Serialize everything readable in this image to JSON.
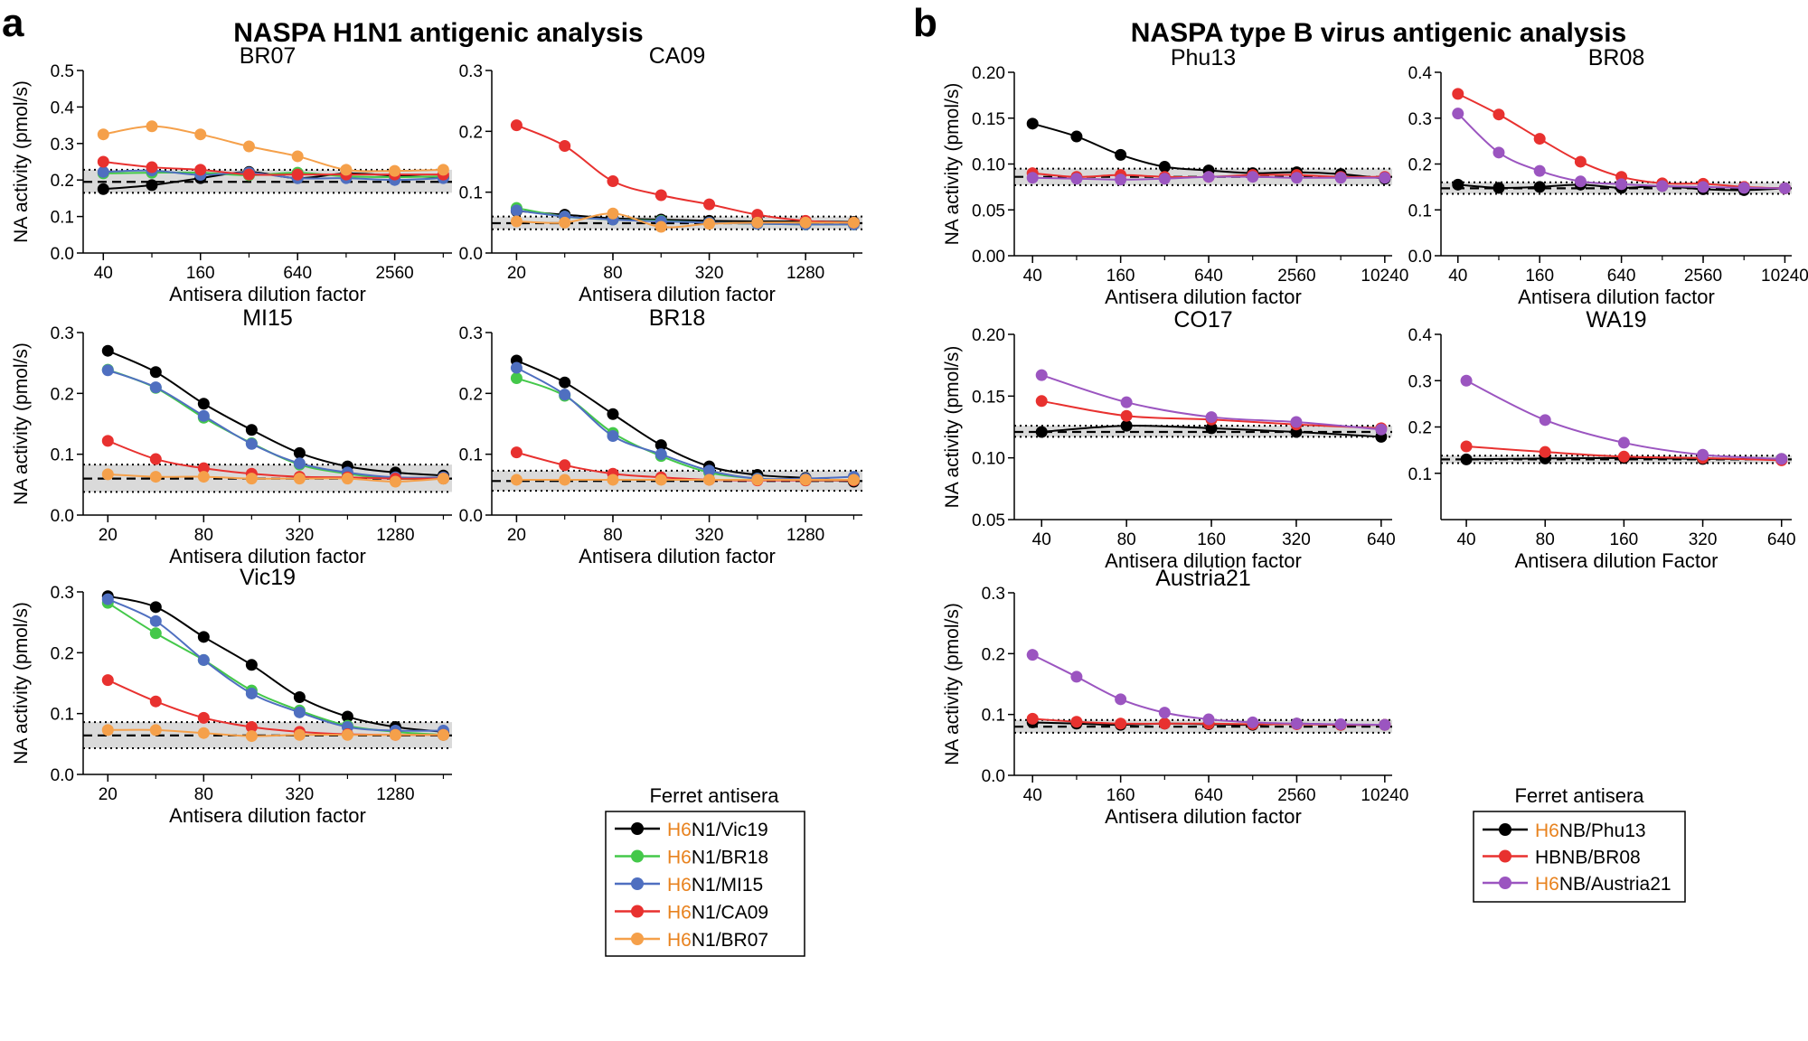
{
  "panel_a": {
    "letter": "a",
    "title": "NASPA H1N1 antigenic analysis",
    "legend": {
      "title": "Ferret antisera",
      "entries": [
        {
          "prefix": "H6",
          "rest": "N1/Vic19",
          "color": "#000000"
        },
        {
          "prefix": "H6",
          "rest": "N1/BR18",
          "color": "#44c84a"
        },
        {
          "prefix": "H6",
          "rest": "N1/MI15",
          "color": "#4f6fc0"
        },
        {
          "prefix": "H6",
          "rest": "N1/CA09",
          "color": "#e8312f"
        },
        {
          "prefix": "H6",
          "rest": "N1/BR07",
          "color": "#f5a04a"
        }
      ]
    }
  },
  "panel_b": {
    "letter": "b",
    "title": "NASPA type B virus antigenic analysis",
    "legend": {
      "title": "Ferret antisera",
      "entries": [
        {
          "prefix": "H6",
          "rest": "NB/Phu13",
          "color": "#000000"
        },
        {
          "prefix": "",
          "rest": "HBNB/BR08",
          "color": "#e8312f"
        },
        {
          "prefix": "H6",
          "rest": "NB/Austria21",
          "color": "#9b55c0"
        }
      ]
    }
  },
  "colors": {
    "prefix_orange": "#e8821e",
    "band_gray": "#d4d4d4"
  },
  "chart_data": [
    {
      "type": "line",
      "name": "BR07",
      "title": "BR07",
      "xlabel": "Antisera dilution factor",
      "ylabel": "NA activity (pmol/s)",
      "x": [
        40,
        80,
        160,
        320,
        640,
        1280,
        2560,
        5120
      ],
      "xticks": [
        40,
        160,
        640,
        2560
      ],
      "xlim": [
        30,
        5800
      ],
      "ylim": [
        0,
        0.5
      ],
      "yticks": [
        0.0,
        0.1,
        0.2,
        0.3,
        0.4,
        0.5
      ],
      "ytick_labels": [
        "0.0",
        "0.1",
        "0.2",
        "0.3",
        "0.4",
        "0.5"
      ],
      "baseline": {
        "mean": 0.195,
        "low": 0.165,
        "high": 0.228
      },
      "series": [
        {
          "name": "H6N1/Vic19",
          "color": "#000000",
          "values": [
            0.175,
            0.186,
            0.205,
            0.222,
            0.205,
            0.218,
            0.212,
            0.207
          ]
        },
        {
          "name": "H6N1/BR18",
          "color": "#44c84a",
          "values": [
            0.218,
            0.22,
            0.22,
            0.213,
            0.22,
            0.21,
            0.208,
            0.21
          ]
        },
        {
          "name": "H6N1/MI15",
          "color": "#4f6fc0",
          "values": [
            0.222,
            0.226,
            0.214,
            0.22,
            0.205,
            0.205,
            0.2,
            0.205
          ]
        },
        {
          "name": "H6N1/CA09",
          "color": "#e8312f",
          "values": [
            0.25,
            0.235,
            0.228,
            0.215,
            0.215,
            0.215,
            0.215,
            0.215
          ]
        },
        {
          "name": "H6N1/BR07",
          "color": "#f5a04a",
          "values": [
            0.325,
            0.347,
            0.325,
            0.292,
            0.265,
            0.228,
            0.225,
            0.228
          ]
        }
      ]
    },
    {
      "type": "line",
      "name": "CA09",
      "title": "CA09",
      "xlabel": "Antisera dilution factor",
      "ylabel": "",
      "x": [
        20,
        40,
        80,
        160,
        320,
        640,
        1280,
        2560
      ],
      "xticks": [
        20,
        80,
        320,
        1280
      ],
      "xlim": [
        14,
        2900
      ],
      "ylim": [
        0,
        0.3
      ],
      "yticks": [
        0.0,
        0.1,
        0.2,
        0.3
      ],
      "ytick_labels": [
        "0.0",
        "0.1",
        "0.2",
        "0.3"
      ],
      "baseline": {
        "mean": 0.049,
        "low": 0.039,
        "high": 0.06
      },
      "series": [
        {
          "name": "H6N1/Vic19",
          "color": "#000000",
          "values": [
            0.069,
            0.063,
            0.057,
            0.055,
            0.053,
            0.052,
            0.052,
            0.051
          ]
        },
        {
          "name": "H6N1/BR18",
          "color": "#44c84a",
          "values": [
            0.074,
            0.06,
            0.055,
            0.053,
            0.05,
            0.048,
            0.047,
            0.047
          ]
        },
        {
          "name": "H6N1/MI15",
          "color": "#4f6fc0",
          "values": [
            0.07,
            0.06,
            0.055,
            0.052,
            0.05,
            0.048,
            0.047,
            0.047
          ]
        },
        {
          "name": "H6N1/CA09",
          "color": "#e8312f",
          "values": [
            0.21,
            0.176,
            0.118,
            0.095,
            0.08,
            0.063,
            0.053,
            0.05
          ]
        },
        {
          "name": "H6N1/BR07",
          "color": "#f5a04a",
          "values": [
            0.052,
            0.05,
            0.065,
            0.043,
            0.048,
            0.05,
            0.05,
            0.05
          ]
        }
      ]
    },
    {
      "type": "line",
      "name": "MI15",
      "title": "MI15",
      "xlabel": "Antisera dilution factor",
      "ylabel": "NA activity (pmol/s)",
      "x": [
        20,
        40,
        80,
        160,
        320,
        640,
        1280,
        2560
      ],
      "xticks": [
        20,
        80,
        320,
        1280
      ],
      "xlim": [
        14,
        2900
      ],
      "ylim": [
        0,
        0.3
      ],
      "yticks": [
        0.0,
        0.1,
        0.2,
        0.3
      ],
      "ytick_labels": [
        "0.0",
        "0.1",
        "0.2",
        "0.3"
      ],
      "baseline": {
        "mean": 0.06,
        "low": 0.038,
        "high": 0.083
      },
      "series": [
        {
          "name": "H6N1/Vic19",
          "color": "#000000",
          "values": [
            0.27,
            0.235,
            0.183,
            0.14,
            0.102,
            0.08,
            0.07,
            0.065
          ]
        },
        {
          "name": "H6N1/BR18",
          "color": "#44c84a",
          "values": [
            0.239,
            0.209,
            0.16,
            0.118,
            0.083,
            0.068,
            0.06,
            0.06
          ]
        },
        {
          "name": "H6N1/MI15",
          "color": "#4f6fc0",
          "values": [
            0.238,
            0.21,
            0.163,
            0.117,
            0.085,
            0.07,
            0.062,
            0.062
          ]
        },
        {
          "name": "H6N1/CA09",
          "color": "#e8312f",
          "values": [
            0.122,
            0.092,
            0.077,
            0.068,
            0.063,
            0.062,
            0.06,
            0.06
          ]
        },
        {
          "name": "H6N1/BR07",
          "color": "#f5a04a",
          "values": [
            0.067,
            0.063,
            0.063,
            0.06,
            0.06,
            0.06,
            0.055,
            0.06
          ]
        }
      ]
    },
    {
      "type": "line",
      "name": "BR18",
      "title": "BR18",
      "xlabel": "Antisera dilution factor",
      "ylabel": "",
      "x": [
        20,
        40,
        80,
        160,
        320,
        640,
        1280,
        2560
      ],
      "xticks": [
        20,
        80,
        320,
        1280
      ],
      "xlim": [
        14,
        2900
      ],
      "ylim": [
        0,
        0.3
      ],
      "yticks": [
        0.0,
        0.1,
        0.2,
        0.3
      ],
      "ytick_labels": [
        "0.0",
        "0.1",
        "0.2",
        "0.3"
      ],
      "baseline": {
        "mean": 0.056,
        "low": 0.04,
        "high": 0.073
      },
      "series": [
        {
          "name": "H6N1/Vic19",
          "color": "#000000",
          "values": [
            0.254,
            0.218,
            0.166,
            0.115,
            0.08,
            0.066,
            0.061,
            0.055
          ]
        },
        {
          "name": "H6N1/BR18",
          "color": "#44c84a",
          "values": [
            0.225,
            0.196,
            0.135,
            0.097,
            0.07,
            0.06,
            0.057,
            0.057
          ]
        },
        {
          "name": "H6N1/MI15",
          "color": "#4f6fc0",
          "values": [
            0.242,
            0.198,
            0.13,
            0.1,
            0.073,
            0.06,
            0.06,
            0.063
          ]
        },
        {
          "name": "H6N1/CA09",
          "color": "#e8312f",
          "values": [
            0.103,
            0.082,
            0.068,
            0.062,
            0.058,
            0.057,
            0.057,
            0.057
          ]
        },
        {
          "name": "H6N1/BR07",
          "color": "#f5a04a",
          "values": [
            0.058,
            0.058,
            0.058,
            0.058,
            0.058,
            0.058,
            0.058,
            0.058
          ]
        }
      ]
    },
    {
      "type": "line",
      "name": "Vic19",
      "title": "Vic19",
      "xlabel": "Antisera dilution factor",
      "ylabel": "NA activity (pmol/s)",
      "x": [
        20,
        40,
        80,
        160,
        320,
        640,
        1280,
        2560
      ],
      "xticks": [
        20,
        80,
        320,
        1280
      ],
      "xlim": [
        14,
        2900
      ],
      "ylim": [
        0,
        0.3
      ],
      "yticks": [
        0.0,
        0.1,
        0.2,
        0.3
      ],
      "ytick_labels": [
        "0.0",
        "0.1",
        "0.2",
        "0.3"
      ],
      "baseline": {
        "mean": 0.064,
        "low": 0.043,
        "high": 0.086
      },
      "series": [
        {
          "name": "H6N1/Vic19",
          "color": "#000000",
          "values": [
            0.293,
            0.275,
            0.226,
            0.18,
            0.127,
            0.095,
            0.078,
            0.07
          ]
        },
        {
          "name": "H6N1/BR18",
          "color": "#44c84a",
          "values": [
            0.282,
            0.232,
            0.188,
            0.138,
            0.105,
            0.08,
            0.07,
            0.065
          ]
        },
        {
          "name": "H6N1/MI15",
          "color": "#4f6fc0",
          "values": [
            0.288,
            0.252,
            0.188,
            0.133,
            0.102,
            0.078,
            0.072,
            0.072
          ]
        },
        {
          "name": "H6N1/CA09",
          "color": "#e8312f",
          "values": [
            0.155,
            0.12,
            0.093,
            0.078,
            0.07,
            0.066,
            0.065,
            0.065
          ]
        },
        {
          "name": "H6N1/BR07",
          "color": "#f5a04a",
          "values": [
            0.073,
            0.073,
            0.068,
            0.063,
            0.065,
            0.065,
            0.065,
            0.065
          ]
        }
      ]
    },
    {
      "type": "line",
      "name": "Phu13",
      "title": "Phu13",
      "xlabel": "Antisera dilution factor",
      "ylabel": "NA activity (pmol/s)",
      "x": [
        40,
        80,
        160,
        320,
        640,
        1280,
        2560,
        5120,
        10240
      ],
      "xticks": [
        40,
        160,
        640,
        2560,
        10240
      ],
      "xlim": [
        30,
        11500
      ],
      "ylim": [
        0,
        0.2
      ],
      "yticks": [
        0.0,
        0.05,
        0.1,
        0.15,
        0.2
      ],
      "ytick_labels": [
        "0.00",
        "0.05",
        "0.10",
        "0.15",
        "0.20"
      ],
      "baseline": {
        "mean": 0.086,
        "low": 0.077,
        "high": 0.095
      },
      "series": [
        {
          "name": "H6NB/Phu13",
          "color": "#000000",
          "values": [
            0.144,
            0.13,
            0.11,
            0.097,
            0.093,
            0.09,
            0.091,
            0.089,
            0.084
          ]
        },
        {
          "name": "HBNB/BR08",
          "color": "#e8312f",
          "values": [
            0.09,
            0.086,
            0.088,
            0.086,
            0.086,
            0.088,
            0.088,
            0.086,
            0.086
          ]
        },
        {
          "name": "H6NB/Austria21",
          "color": "#9b55c0",
          "values": [
            0.085,
            0.084,
            0.083,
            0.084,
            0.086,
            0.086,
            0.085,
            0.085,
            0.085
          ]
        }
      ]
    },
    {
      "type": "line",
      "name": "BR08",
      "title": "BR08",
      "xlabel": "Antisera dilution factor",
      "ylabel": "",
      "x": [
        40,
        80,
        160,
        320,
        640,
        1280,
        2560,
        5120,
        10240
      ],
      "xticks": [
        40,
        160,
        640,
        2560,
        10240
      ],
      "xlim": [
        30,
        11500
      ],
      "ylim": [
        0,
        0.4
      ],
      "yticks": [
        0.0,
        0.1,
        0.2,
        0.3,
        0.4
      ],
      "ytick_labels": [
        "0.0",
        "0.1",
        "0.2",
        "0.3",
        "0.4"
      ],
      "baseline": {
        "mean": 0.147,
        "low": 0.135,
        "high": 0.16
      },
      "series": [
        {
          "name": "H6NB/Phu13",
          "color": "#000000",
          "values": [
            0.155,
            0.148,
            0.15,
            0.155,
            0.148,
            0.152,
            0.145,
            0.143,
            0.147
          ]
        },
        {
          "name": "HBNB/BR08",
          "color": "#e8312f",
          "values": [
            0.353,
            0.308,
            0.255,
            0.205,
            0.172,
            0.158,
            0.157,
            0.15,
            0.147
          ]
        },
        {
          "name": "H6NB/Austria21",
          "color": "#9b55c0",
          "values": [
            0.31,
            0.225,
            0.185,
            0.162,
            0.156,
            0.152,
            0.15,
            0.148,
            0.147
          ]
        }
      ]
    },
    {
      "type": "line",
      "name": "CO17",
      "title": "CO17",
      "xlabel": "Antisera dilution factor",
      "ylabel": "NA activity (pmol/s)",
      "x": [
        40,
        80,
        160,
        320,
        640
      ],
      "xticks": [
        40,
        80,
        160,
        320,
        640
      ],
      "xlim": [
        32,
        700
      ],
      "ylim": [
        0.05,
        0.2
      ],
      "yticks": [
        0.05,
        0.1,
        0.15,
        0.2
      ],
      "ytick_labels": [
        "0.05",
        "0.10",
        "0.15",
        "0.20"
      ],
      "baseline": {
        "mean": 0.121,
        "low": 0.117,
        "high": 0.126
      },
      "series": [
        {
          "name": "H6NB/Phu13",
          "color": "#000000",
          "values": [
            0.121,
            0.126,
            0.124,
            0.121,
            0.117
          ]
        },
        {
          "name": "HBNB/BR08",
          "color": "#e8312f",
          "values": [
            0.146,
            0.134,
            0.131,
            0.127,
            0.124
          ]
        },
        {
          "name": "H6NB/Austria21",
          "color": "#9b55c0",
          "values": [
            0.167,
            0.145,
            0.133,
            0.129,
            0.123
          ]
        }
      ]
    },
    {
      "type": "line",
      "name": "WA19",
      "title": "WA19",
      "xlabel": "Antisera dilution Factor",
      "ylabel": "",
      "x": [
        40,
        80,
        160,
        320,
        640
      ],
      "xticks": [
        40,
        80,
        160,
        320,
        640
      ],
      "xlim": [
        32,
        700
      ],
      "ylim": [
        0,
        0.4
      ],
      "yticks": [
        0.1,
        0.2,
        0.3,
        0.4
      ],
      "ytick_labels": [
        "0.1",
        "0.2",
        "0.3",
        "0.4"
      ],
      "baseline": {
        "mean": 0.13,
        "low": 0.122,
        "high": 0.138
      },
      "series": [
        {
          "name": "H6NB/Phu13",
          "color": "#000000",
          "values": [
            0.13,
            0.132,
            0.133,
            0.131,
            0.131
          ]
        },
        {
          "name": "HBNB/BR08",
          "color": "#e8312f",
          "values": [
            0.158,
            0.146,
            0.136,
            0.133,
            0.128
          ]
        },
        {
          "name": "H6NB/Austria21",
          "color": "#9b55c0",
          "values": [
            0.3,
            0.215,
            0.166,
            0.14,
            0.131
          ]
        }
      ]
    },
    {
      "type": "line",
      "name": "Austria21",
      "title": "Austria21",
      "xlabel": "Antisera dilution factor",
      "ylabel": "NA activity (pmol/s)",
      "x": [
        40,
        80,
        160,
        320,
        640,
        1280,
        2560,
        5120,
        10240
      ],
      "xticks": [
        40,
        160,
        640,
        2560,
        10240
      ],
      "xlim": [
        30,
        11500
      ],
      "ylim": [
        0,
        0.3
      ],
      "yticks": [
        0.0,
        0.1,
        0.2,
        0.3
      ],
      "ytick_labels": [
        "0.0",
        "0.1",
        "0.2",
        "0.3"
      ],
      "baseline": {
        "mean": 0.08,
        "low": 0.07,
        "high": 0.091
      },
      "series": [
        {
          "name": "H6NB/Phu13",
          "color": "#000000",
          "values": [
            0.087,
            0.085,
            0.083,
            0.085,
            0.084,
            0.083,
            0.085,
            0.083,
            0.083
          ]
        },
        {
          "name": "HBNB/BR08",
          "color": "#e8312f",
          "values": [
            0.093,
            0.088,
            0.085,
            0.085,
            0.085,
            0.084,
            0.084,
            0.083,
            0.083
          ]
        },
        {
          "name": "H6NB/Austria21",
          "color": "#9b55c0",
          "values": [
            0.198,
            0.162,
            0.125,
            0.103,
            0.092,
            0.087,
            0.085,
            0.084,
            0.083
          ]
        }
      ]
    }
  ]
}
